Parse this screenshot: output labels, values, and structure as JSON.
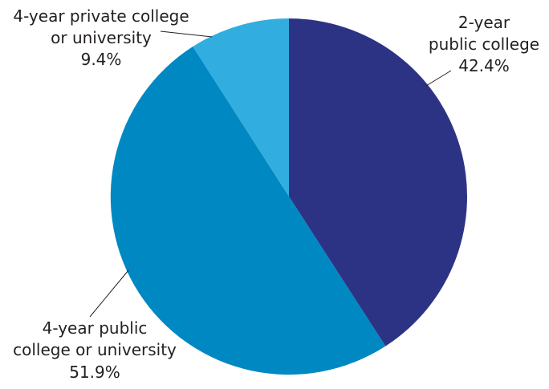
{
  "chart_data": {
    "type": "pie",
    "title": "",
    "colors": [
      "#2d3384",
      "#0088c2",
      "#32ade0"
    ],
    "slices": [
      {
        "label_lines": [
          "2-year",
          "public college"
        ],
        "value_text": "42.4%",
        "value": 42.4
      },
      {
        "label_lines": [
          "4-year public",
          "college or university"
        ],
        "value_text": "51.9%",
        "value": 51.9
      },
      {
        "label_lines": [
          "4-year private college",
          "or university"
        ],
        "value_text": "9.4%",
        "value": 9.4
      }
    ]
  }
}
